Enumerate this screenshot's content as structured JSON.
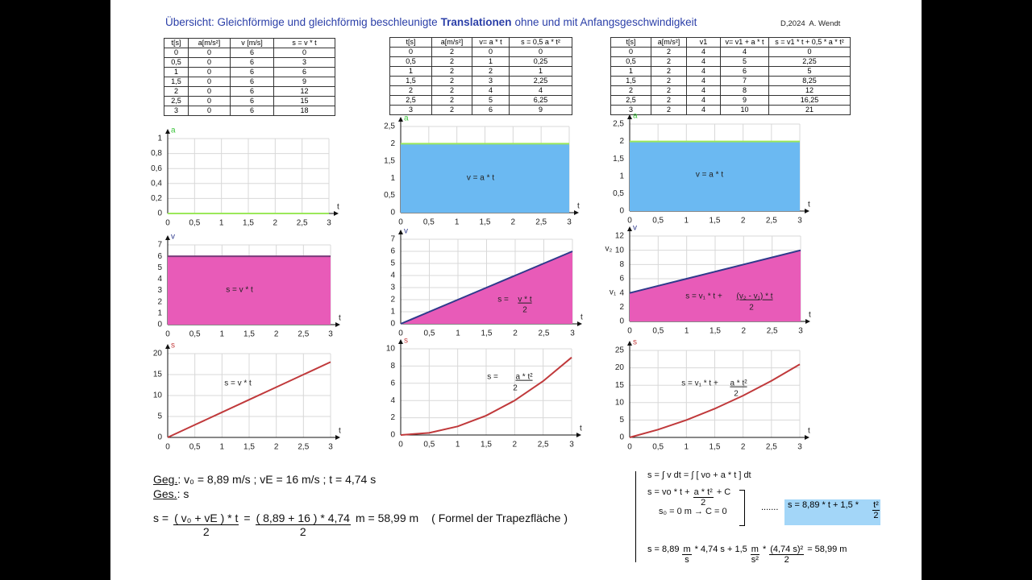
{
  "header": {
    "title_start": "Übersicht: Gleichförmige und gleichförmig beschleunigte",
    "title_bold": "Translationen",
    "title_end": "ohne und mit Anfangsgeschwindigkeit",
    "author": "D,2024  A. Wendt"
  },
  "tables": [
    {
      "header": [
        "t[s]",
        "a[m/s²]",
        "v [m/s]",
        "s = v * t"
      ],
      "rows": [
        [
          "0",
          "0",
          "6",
          "0"
        ],
        [
          "0,5",
          "0",
          "6",
          "3"
        ],
        [
          "1",
          "0",
          "6",
          "6"
        ],
        [
          "1,5",
          "0",
          "6",
          "9"
        ],
        [
          "2",
          "0",
          "6",
          "12"
        ],
        [
          "2,5",
          "0",
          "6",
          "15"
        ],
        [
          "3",
          "0",
          "6",
          "18"
        ]
      ]
    },
    {
      "header": [
        "t[s]",
        "a[m/s²]",
        "v= a * t",
        "s = 0,5  a * t²"
      ],
      "rows": [
        [
          "0",
          "2",
          "0",
          "0"
        ],
        [
          "0,5",
          "2",
          "1",
          "0,25"
        ],
        [
          "1",
          "2",
          "2",
          "1"
        ],
        [
          "1,5",
          "2",
          "3",
          "2,25"
        ],
        [
          "2",
          "2",
          "4",
          "4"
        ],
        [
          "2,5",
          "2",
          "5",
          "6,25"
        ],
        [
          "3",
          "2",
          "6",
          "9"
        ]
      ]
    },
    {
      "header": [
        "t[s]",
        "a[m/s²]",
        "v1",
        "v= v1 + a * t",
        "s = v1 * t + 0,5 * a * t²"
      ],
      "rows": [
        [
          "0",
          "2",
          "4",
          "4",
          "0"
        ],
        [
          "0,5",
          "2",
          "4",
          "5",
          "2,25"
        ],
        [
          "1",
          "2",
          "4",
          "6",
          "5"
        ],
        [
          "1,5",
          "2",
          "4",
          "7",
          "8,25"
        ],
        [
          "2",
          "2",
          "4",
          "8",
          "12"
        ],
        [
          "2,5",
          "2",
          "4",
          "9",
          "16,25"
        ],
        [
          "3",
          "2",
          "4",
          "10",
          "21"
        ]
      ]
    }
  ],
  "chart_data": [
    {
      "type": "area",
      "x_label": "t",
      "y_label": "a",
      "y_label_color": "#3cc43c",
      "grid": true,
      "x": [
        0,
        0.5,
        1,
        1.5,
        2,
        2.5,
        3
      ],
      "xlim": [
        0,
        3
      ],
      "ylim": [
        0,
        1
      ],
      "xticks": [
        0,
        {
          "value": 0.5,
          "label": "0,5"
        },
        1,
        {
          "value": 1.5,
          "label": "1,5"
        },
        2,
        {
          "value": 2.5,
          "label": "2,5"
        },
        3
      ],
      "yticks": [
        0,
        {
          "value": 0.2,
          "label": "0,2"
        },
        {
          "value": 0.4,
          "label": "0,4"
        },
        {
          "value": 0.6,
          "label": "0,6"
        },
        {
          "value": 0.8,
          "label": "0,8"
        },
        1
      ],
      "series": [
        {
          "color": "#6bb9f2",
          "line_color": "#9be85a",
          "values": [
            0,
            0,
            0,
            0,
            0,
            0,
            0
          ]
        }
      ],
      "annotations": []
    },
    {
      "type": "area",
      "x_label": "t",
      "y_label": "a",
      "y_label_color": "#3cc43c",
      "grid": true,
      "x": [
        0,
        0.5,
        1,
        1.5,
        2,
        2.5,
        3
      ],
      "xlim": [
        0,
        3
      ],
      "ylim": [
        0,
        2.5
      ],
      "xticks": [
        0,
        {
          "value": 0.5,
          "label": "0,5"
        },
        1,
        {
          "value": 1.5,
          "label": "1,5"
        },
        2,
        {
          "value": 2.5,
          "label": "2,5"
        },
        3
      ],
      "yticks": [
        0,
        {
          "value": 0.5,
          "label": "0,5"
        },
        1,
        {
          "value": 1.5,
          "label": "1,5"
        },
        2,
        {
          "value": 2.5,
          "label": "2,5"
        }
      ],
      "series": [
        {
          "color": "#6bb9f2",
          "line_color": "#9be85a",
          "values": [
            2,
            2,
            2,
            2,
            2,
            2,
            2
          ]
        }
      ],
      "annotations": [
        "v = a * t"
      ]
    },
    {
      "type": "area",
      "x_label": "t",
      "y_label": "a",
      "y_label_color": "#3cc43c",
      "grid": true,
      "x": [
        0,
        0.5,
        1,
        1.5,
        2,
        2.5,
        3
      ],
      "xlim": [
        0,
        3
      ],
      "ylim": [
        0,
        2.5
      ],
      "xticks": [
        0,
        {
          "value": 0.5,
          "label": "0,5"
        },
        1,
        {
          "value": 1.5,
          "label": "1,5"
        },
        2,
        {
          "value": 2.5,
          "label": "2,5"
        },
        3
      ],
      "yticks": [
        0,
        {
          "value": 0.5,
          "label": "0,5"
        },
        1,
        {
          "value": 1.5,
          "label": "1,5"
        },
        2,
        {
          "value": 2.5,
          "label": "2,5"
        }
      ],
      "series": [
        {
          "color": "#6bb9f2",
          "line_color": "#9be85a",
          "values": [
            2,
            2,
            2,
            2,
            2,
            2,
            2
          ]
        }
      ],
      "annotations": [
        "v = a * t"
      ]
    },
    {
      "type": "area",
      "x_label": "t",
      "y_label": "v",
      "y_label_color": "#2e3a8c",
      "grid": true,
      "x": [
        0,
        0.5,
        1,
        1.5,
        2,
        2.5,
        3
      ],
      "xlim": [
        0,
        3
      ],
      "ylim": [
        0,
        7
      ],
      "xticks": [
        0,
        {
          "value": 0.5,
          "label": "0,5"
        },
        1,
        {
          "value": 1.5,
          "label": "1,5"
        },
        2,
        {
          "value": 2.5,
          "label": "2,5"
        },
        3
      ],
      "yticks": [
        0,
        1,
        2,
        3,
        4,
        5,
        6,
        7
      ],
      "series": [
        {
          "color": "#e85bb8",
          "line_color": "#7a3a7a",
          "values": [
            6,
            6,
            6,
            6,
            6,
            6,
            6
          ]
        }
      ],
      "annotations": [
        "s = v * t"
      ]
    },
    {
      "type": "area",
      "x_label": "t",
      "y_label": "v",
      "y_label_color": "#2e3a8c",
      "grid": true,
      "x": [
        0,
        0.5,
        1,
        1.5,
        2,
        2.5,
        3
      ],
      "xlim": [
        0,
        3
      ],
      "ylim": [
        0,
        7
      ],
      "xticks": [
        0,
        {
          "value": 0.5,
          "label": "0,5"
        },
        1,
        {
          "value": 1.5,
          "label": "1,5"
        },
        2,
        {
          "value": 2.5,
          "label": "2,5"
        },
        3
      ],
      "yticks": [
        0,
        1,
        2,
        3,
        4,
        5,
        6,
        7
      ],
      "series": [
        {
          "color": "#e85bb8",
          "line_color": "#2e3a8c",
          "values": [
            0,
            1,
            2,
            3,
            4,
            5,
            6
          ]
        }
      ],
      "annotations": [
        "s =",
        "v * t",
        "2"
      ]
    },
    {
      "type": "area",
      "x_label": "t",
      "y_label": "v",
      "y_label_color": "#2e3a8c",
      "grid": true,
      "x": [
        0,
        0.5,
        1,
        1.5,
        2,
        2.5,
        3
      ],
      "xlim": [
        0,
        3
      ],
      "ylim": [
        0,
        12
      ],
      "xticks": [
        0,
        {
          "value": 0.5,
          "label": "0,5"
        },
        1,
        {
          "value": 1.5,
          "label": "1,5"
        },
        2,
        {
          "value": 2.5,
          "label": "2,5"
        },
        3
      ],
      "yticks": [
        0,
        2,
        4,
        6,
        8,
        10,
        12
      ],
      "series": [
        {
          "color": "#e85bb8",
          "line_color": "#2e3a8c",
          "values": [
            4,
            5,
            6,
            7,
            8,
            9,
            10
          ]
        }
      ],
      "annotations": [
        "v₂",
        "v₁",
        "s = v₁ * t +",
        "(v₂ - v₁) * t",
        "2"
      ]
    },
    {
      "type": "line",
      "x_label": "t",
      "y_label": "s",
      "y_label_color": "#c43c3c",
      "grid": true,
      "x": [
        0,
        0.5,
        1,
        1.5,
        2,
        2.5,
        3
      ],
      "xlim": [
        0,
        3
      ],
      "ylim": [
        0,
        20
      ],
      "xticks": [
        0,
        {
          "value": 0.5,
          "label": "0,5"
        },
        1,
        {
          "value": 1.5,
          "label": "1,5"
        },
        2,
        {
          "value": 2.5,
          "label": "2,5"
        },
        3
      ],
      "yticks": [
        0,
        5,
        10,
        15,
        20
      ],
      "series": [
        {
          "line_color": "#c0393b",
          "values": [
            0,
            3,
            6,
            9,
            12,
            15,
            18
          ]
        }
      ],
      "annotations": [
        "s = v * t"
      ]
    },
    {
      "type": "line",
      "x_label": "t",
      "y_label": "s",
      "y_label_color": "#c43c3c",
      "grid": true,
      "x": [
        0,
        0.5,
        1,
        1.5,
        2,
        2.5,
        3
      ],
      "xlim": [
        0,
        3
      ],
      "ylim": [
        0,
        10
      ],
      "xticks": [
        0,
        {
          "value": 0.5,
          "label": "0,5"
        },
        1,
        {
          "value": 1.5,
          "label": "1,5"
        },
        2,
        {
          "value": 2.5,
          "label": "2,5"
        },
        3
      ],
      "yticks": [
        0,
        2,
        4,
        6,
        8,
        10
      ],
      "series": [
        {
          "line_color": "#c0393b",
          "values": [
            0,
            0.25,
            1,
            2.25,
            4,
            6.25,
            9
          ]
        }
      ],
      "annotations": [
        "s =",
        "a * t²",
        "2"
      ]
    },
    {
      "type": "line",
      "x_label": "t",
      "y_label": "s",
      "y_label_color": "#c43c3c",
      "grid": true,
      "x": [
        0,
        0.5,
        1,
        1.5,
        2,
        2.5,
        3
      ],
      "xlim": [
        0,
        3
      ],
      "ylim": [
        0,
        25
      ],
      "xticks": [
        0,
        {
          "value": 0.5,
          "label": "0,5"
        },
        1,
        {
          "value": 1.5,
          "label": "1,5"
        },
        2,
        {
          "value": 2.5,
          "label": "2,5"
        },
        3
      ],
      "yticks": [
        0,
        5,
        10,
        15,
        20,
        25
      ],
      "series": [
        {
          "line_color": "#c0393b",
          "values": [
            0,
            2.25,
            5,
            8.25,
            12,
            16.25,
            21
          ]
        }
      ],
      "annotations": [
        "s = v₁ * t +",
        "a * t²",
        "2"
      ]
    }
  ],
  "task": {
    "given_label": "Geg.",
    "given": ": v₀ = 8,89 m/s ; vE = 16 m/s ; t = 4,74 s",
    "sought_label": "Ges.",
    "sought": ": s",
    "formula": {
      "lhs": "s =",
      "num1": "( v₀ + vE ) * t",
      "den1": "2",
      "mid": "=",
      "num2": "( 8,89 + 16 ) * 4,74",
      "den2": "2",
      "rhs": "m = 58,99 m",
      "note": "( Formel der Trapezfläche )"
    }
  },
  "derivation": {
    "line1": "s = ∫ v dt = ∫ [ vo + a * t ] dt",
    "line2": {
      "lhs": "s = vo * t +",
      "num": "a * t²",
      "den": "2",
      "rhs": "+ C"
    },
    "line3": "s₀ = 0 m → C = 0",
    "dots": ".......",
    "result": {
      "lhs": "s = 8,89 * t + 1,5 *",
      "num": "t²",
      "den": "2"
    },
    "final": {
      "p1": "s = 8,89",
      "u1num": "m",
      "u1den": "s",
      "p2": "* 4,74 s + 1,5",
      "u2num": "m",
      "u2den": "s²",
      "p3": "*",
      "num": "(4,74 s)²",
      "den": "2",
      "p4": "= 58,99 m"
    }
  }
}
